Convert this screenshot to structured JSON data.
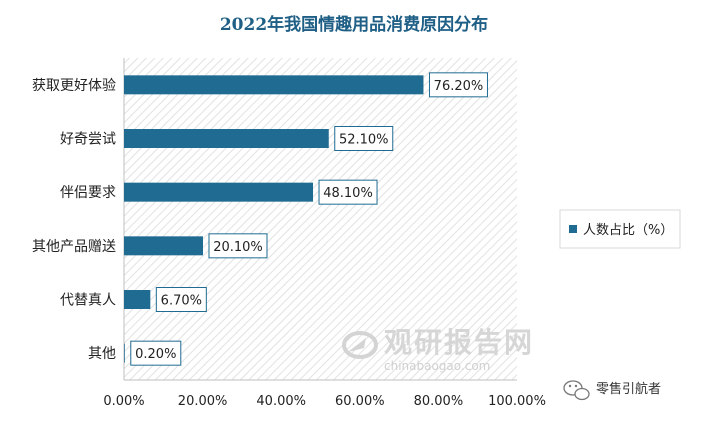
{
  "chart_data": {
    "type": "bar",
    "orientation": "horizontal",
    "title": "2022年我国情趣用品消费原因分布",
    "categories": [
      "获取更好体验",
      "好奇尝试",
      "伴侣要求",
      "其他产品赠送",
      "代替真人",
      "其他"
    ],
    "series": [
      {
        "name": "人数占比（%）",
        "values": [
          76.2,
          52.1,
          48.1,
          20.1,
          6.7,
          0.2
        ],
        "labels": [
          "76.20%",
          "52.10%",
          "48.10%",
          "20.10%",
          "6.70%",
          "0.20%"
        ]
      }
    ],
    "xlim": [
      0,
      100
    ],
    "xticks": [
      "0.00%",
      "20.00%",
      "40.00%",
      "60.00%",
      "80.00%",
      "100.00%"
    ],
    "legend_position": "right",
    "grid": false,
    "bar_color": "#1f6b92"
  },
  "watermark": {
    "main": "观研报告网",
    "sub": "chinabaogao.com"
  },
  "source_badge": {
    "text": "零售引航者"
  }
}
